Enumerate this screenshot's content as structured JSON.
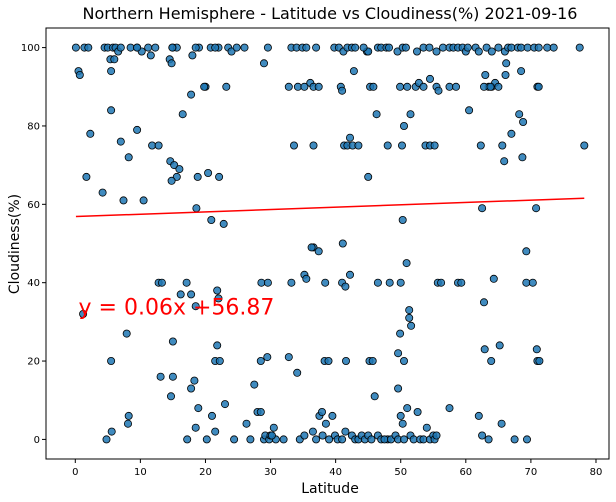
{
  "chart_data": {
    "type": "scatter",
    "title": "Northern Hemisphere - Latitude vs Cloudiness(%) 2021-09-16",
    "xlabel": "Latitude",
    "ylabel": "Cloudiness(%)",
    "xlim": [
      -4.5,
      82
    ],
    "ylim": [
      -5,
      105
    ],
    "xticks": [
      0,
      10,
      20,
      30,
      40,
      50,
      60,
      70,
      80
    ],
    "yticks": [
      0,
      20,
      40,
      60,
      80,
      100
    ],
    "grid": false,
    "point_color": "#1f77b4",
    "point_edge_color": "#000000",
    "regression": {
      "slope": 0.06,
      "intercept": 56.87,
      "x_range": [
        0.1,
        78.2
      ],
      "color": "#ff0000",
      "equation_label": "y = 0.06x +56.87",
      "label_at": [
        0.5,
        35
      ]
    },
    "points": [
      [
        0.1,
        100
      ],
      [
        0.5,
        94
      ],
      [
        0.7,
        93
      ],
      [
        1.4,
        100
      ],
      [
        2.0,
        100
      ],
      [
        4.5,
        100
      ],
      [
        5.0,
        100
      ],
      [
        5.4,
        97
      ],
      [
        5.8,
        100
      ],
      [
        6.2,
        100
      ],
      [
        6.6,
        99
      ],
      [
        7.0,
        100
      ],
      [
        8.5,
        100
      ],
      [
        9.5,
        100
      ],
      [
        10.2,
        99
      ],
      [
        11.2,
        100
      ],
      [
        11.6,
        98
      ],
      [
        12.3,
        100
      ],
      [
        14.5,
        97
      ],
      [
        14.8,
        96
      ],
      [
        15.0,
        100
      ],
      [
        15.6,
        100
      ],
      [
        18.0,
        98
      ],
      [
        19.0,
        100
      ],
      [
        20.8,
        100
      ],
      [
        22.0,
        100
      ],
      [
        23.5,
        100
      ],
      [
        24.0,
        99
      ],
      [
        24.8,
        100
      ],
      [
        26.0,
        100
      ],
      [
        29.6,
        100
      ],
      [
        33.2,
        100
      ],
      [
        34.0,
        100
      ],
      [
        34.9,
        100
      ],
      [
        35.5,
        100
      ],
      [
        37.0,
        100
      ],
      [
        39.8,
        100
      ],
      [
        40.5,
        100
      ],
      [
        41.2,
        99
      ],
      [
        41.8,
        100
      ],
      [
        42.5,
        100
      ],
      [
        43.0,
        100
      ],
      [
        44.8,
        99
      ],
      [
        46.5,
        100
      ],
      [
        47.0,
        100
      ],
      [
        47.8,
        100
      ],
      [
        48.2,
        100
      ],
      [
        49.5,
        99
      ],
      [
        50.3,
        100
      ],
      [
        50.8,
        100
      ],
      [
        52.5,
        99
      ],
      [
        53.5,
        100
      ],
      [
        54.4,
        100
      ],
      [
        55.5,
        99
      ],
      [
        56.5,
        100
      ],
      [
        57.5,
        100
      ],
      [
        58.1,
        100
      ],
      [
        58.8,
        100
      ],
      [
        59.5,
        100
      ],
      [
        60.0,
        99
      ],
      [
        61.5,
        100
      ],
      [
        62.0,
        99
      ],
      [
        63.2,
        100
      ],
      [
        64.0,
        99
      ],
      [
        65.0,
        100
      ],
      [
        66.0,
        99
      ],
      [
        66.5,
        100
      ],
      [
        67.0,
        100
      ],
      [
        68.0,
        100
      ],
      [
        68.5,
        100
      ],
      [
        69.5,
        100
      ],
      [
        70.5,
        100
      ],
      [
        71.2,
        100
      ],
      [
        72.5,
        100
      ],
      [
        73.5,
        100
      ],
      [
        77.5,
        100
      ],
      [
        5.5,
        94
      ],
      [
        6.0,
        97
      ],
      [
        9.5,
        100
      ],
      [
        14.9,
        100
      ],
      [
        18.5,
        100
      ],
      [
        21.5,
        100
      ],
      [
        29.0,
        96
      ],
      [
        32.8,
        90
      ],
      [
        34.2,
        90
      ],
      [
        35.2,
        90
      ],
      [
        36.1,
        91
      ],
      [
        36.6,
        90
      ],
      [
        37.4,
        90
      ],
      [
        40.8,
        90
      ],
      [
        41.0,
        89
      ],
      [
        42.8,
        94
      ],
      [
        45.3,
        90
      ],
      [
        45.8,
        90
      ],
      [
        49.9,
        90
      ],
      [
        51.0,
        90
      ],
      [
        52.3,
        90
      ],
      [
        52.8,
        91
      ],
      [
        53.5,
        90
      ],
      [
        54.5,
        92
      ],
      [
        55.5,
        90
      ],
      [
        55.8,
        89
      ],
      [
        57.5,
        90
      ],
      [
        58.5,
        90
      ],
      [
        63.0,
        93
      ],
      [
        63.5,
        90
      ],
      [
        64.0,
        90
      ],
      [
        64.5,
        91
      ],
      [
        65.0,
        90
      ],
      [
        66.2,
        96
      ],
      [
        68.5,
        94
      ],
      [
        71.0,
        90
      ],
      [
        71.2,
        90
      ],
      [
        66.1,
        93
      ],
      [
        62.8,
        90
      ],
      [
        63.8,
        90
      ],
      [
        20.0,
        90
      ],
      [
        23.2,
        90
      ],
      [
        17.8,
        88
      ],
      [
        19.8,
        90
      ],
      [
        16.5,
        83
      ],
      [
        46.3,
        83
      ],
      [
        51.5,
        83
      ],
      [
        60.5,
        84
      ],
      [
        68.2,
        83
      ],
      [
        68.8,
        81
      ],
      [
        5.5,
        84
      ],
      [
        2.3,
        78
      ],
      [
        7.0,
        76
      ],
      [
        9.5,
        79
      ],
      [
        11.8,
        75
      ],
      [
        12.8,
        75
      ],
      [
        14.6,
        71
      ],
      [
        15.2,
        70
      ],
      [
        15.6,
        67
      ],
      [
        14.8,
        66
      ],
      [
        16.0,
        69
      ],
      [
        18.8,
        67
      ],
      [
        20.4,
        68
      ],
      [
        22.1,
        67
      ],
      [
        33.6,
        75
      ],
      [
        36.6,
        75
      ],
      [
        41.3,
        75
      ],
      [
        41.8,
        75
      ],
      [
        42.2,
        77
      ],
      [
        42.6,
        75
      ],
      [
        43.5,
        75
      ],
      [
        45.0,
        67
      ],
      [
        48.0,
        75
      ],
      [
        50.2,
        75
      ],
      [
        50.5,
        80
      ],
      [
        53.8,
        75
      ],
      [
        54.5,
        75
      ],
      [
        55.2,
        75
      ],
      [
        62.3,
        75
      ],
      [
        65.6,
        75
      ],
      [
        65.9,
        71
      ],
      [
        67.0,
        78
      ],
      [
        68.7,
        72
      ],
      [
        78.2,
        75
      ],
      [
        8.2,
        72
      ],
      [
        1.7,
        67
      ],
      [
        4.2,
        63
      ],
      [
        7.4,
        61
      ],
      [
        10.5,
        61
      ],
      [
        18.6,
        59
      ],
      [
        62.5,
        59
      ],
      [
        70.8,
        59
      ],
      [
        20.9,
        56
      ],
      [
        22.8,
        55
      ],
      [
        41.1,
        50
      ],
      [
        36.6,
        49
      ],
      [
        37.4,
        48
      ],
      [
        50.3,
        56
      ],
      [
        69.3,
        48
      ],
      [
        36.3,
        49
      ],
      [
        12.8,
        40
      ],
      [
        13.3,
        40
      ],
      [
        16.2,
        37
      ],
      [
        17.1,
        40
      ],
      [
        17.8,
        37
      ],
      [
        18.5,
        34
      ],
      [
        21.8,
        38
      ],
      [
        22.0,
        36
      ],
      [
        28.6,
        40
      ],
      [
        29.6,
        40
      ],
      [
        33.2,
        40
      ],
      [
        35.2,
        42
      ],
      [
        38.4,
        40
      ],
      [
        41.0,
        40
      ],
      [
        41.5,
        39
      ],
      [
        42.2,
        42
      ],
      [
        46.5,
        40
      ],
      [
        48.3,
        40
      ],
      [
        50.0,
        40
      ],
      [
        50.9,
        45
      ],
      [
        51.3,
        33
      ],
      [
        51.3,
        31
      ],
      [
        55.7,
        40
      ],
      [
        56.2,
        40
      ],
      [
        58.8,
        40
      ],
      [
        59.3,
        40
      ],
      [
        62.8,
        35
      ],
      [
        64.3,
        41
      ],
      [
        69.3,
        40
      ],
      [
        70.3,
        40
      ],
      [
        1.2,
        32
      ],
      [
        7.9,
        27
      ],
      [
        15.0,
        25
      ],
      [
        21.8,
        24
      ],
      [
        21.5,
        20
      ],
      [
        22.2,
        20
      ],
      [
        28.5,
        20
      ],
      [
        29.5,
        21
      ],
      [
        32.8,
        21
      ],
      [
        35.5,
        41
      ],
      [
        34.1,
        17
      ],
      [
        38.3,
        20
      ],
      [
        38.9,
        20
      ],
      [
        41.6,
        20
      ],
      [
        45.2,
        20
      ],
      [
        45.7,
        20
      ],
      [
        49.6,
        22
      ],
      [
        49.9,
        27
      ],
      [
        50.5,
        20
      ],
      [
        51.6,
        29
      ],
      [
        5.5,
        20
      ],
      [
        13.1,
        16
      ],
      [
        15.0,
        16
      ],
      [
        17.8,
        13
      ],
      [
        18.3,
        15
      ],
      [
        27.5,
        14
      ],
      [
        62.9,
        23
      ],
      [
        63.9,
        20
      ],
      [
        65.2,
        24
      ],
      [
        70.9,
        23
      ],
      [
        71.0,
        20
      ],
      [
        71.3,
        20
      ],
      [
        49.6,
        13
      ],
      [
        48.0,
        0
      ],
      [
        5.6,
        2
      ],
      [
        4.8,
        0
      ],
      [
        8.2,
        6
      ],
      [
        8.1,
        4
      ],
      [
        14.7,
        11
      ],
      [
        17.2,
        0
      ],
      [
        18.5,
        3
      ],
      [
        18.9,
        8
      ],
      [
        20.2,
        0
      ],
      [
        21.0,
        6
      ],
      [
        21.5,
        2
      ],
      [
        23.0,
        9
      ],
      [
        24.4,
        0
      ],
      [
        26.3,
        4
      ],
      [
        26.9,
        0
      ],
      [
        28.0,
        7
      ],
      [
        28.5,
        7
      ],
      [
        29.0,
        0
      ],
      [
        29.2,
        1
      ],
      [
        29.8,
        0
      ],
      [
        30.0,
        1
      ],
      [
        30.5,
        3
      ],
      [
        30.8,
        0
      ],
      [
        30.2,
        1
      ],
      [
        32.0,
        0
      ],
      [
        34.5,
        0
      ],
      [
        35.2,
        1
      ],
      [
        36.5,
        2
      ],
      [
        37.0,
        0
      ],
      [
        37.5,
        6
      ],
      [
        37.9,
        7
      ],
      [
        38.0,
        1
      ],
      [
        38.5,
        4
      ],
      [
        39.0,
        0
      ],
      [
        39.5,
        6
      ],
      [
        39.9,
        1
      ],
      [
        40.3,
        0
      ],
      [
        41.0,
        0
      ],
      [
        41.5,
        2
      ],
      [
        42.5,
        1
      ],
      [
        43.0,
        0
      ],
      [
        43.5,
        0
      ],
      [
        44.0,
        1
      ],
      [
        44.5,
        0
      ],
      [
        45.0,
        1
      ],
      [
        45.5,
        0
      ],
      [
        46.0,
        11
      ],
      [
        46.5,
        1
      ],
      [
        47.0,
        0
      ],
      [
        47.5,
        0
      ],
      [
        48.5,
        0
      ],
      [
        49.2,
        1
      ],
      [
        49.6,
        0
      ],
      [
        50.0,
        6
      ],
      [
        50.3,
        4
      ],
      [
        50.5,
        0
      ],
      [
        51.0,
        8
      ],
      [
        51.5,
        1
      ],
      [
        52.0,
        0
      ],
      [
        52.6,
        7
      ],
      [
        53.0,
        0
      ],
      [
        53.5,
        0
      ],
      [
        54.0,
        3
      ],
      [
        54.5,
        0
      ],
      [
        55.0,
        1
      ],
      [
        55.2,
        0
      ],
      [
        55.5,
        1
      ],
      [
        57.5,
        8
      ],
      [
        62.0,
        6
      ],
      [
        62.5,
        1
      ],
      [
        63.5,
        0
      ],
      [
        65.5,
        4
      ],
      [
        67.5,
        0
      ],
      [
        69.4,
        0
      ],
      [
        60.3,
        100
      ],
      [
        45.0,
        99
      ],
      [
        44.3,
        100
      ]
    ]
  }
}
